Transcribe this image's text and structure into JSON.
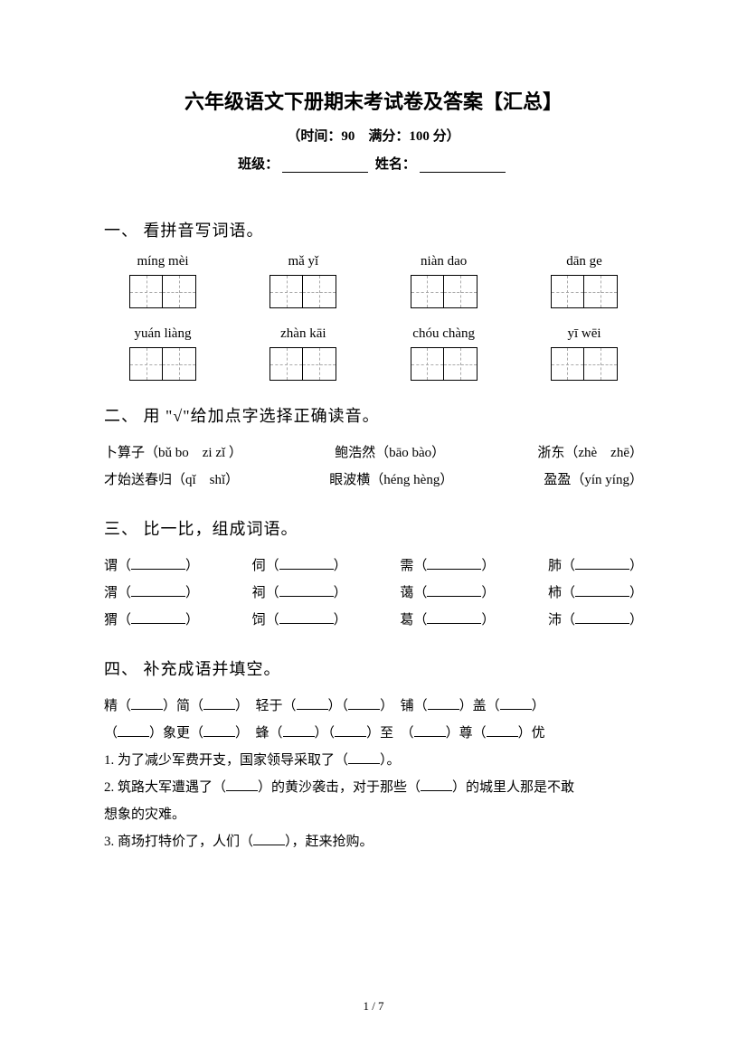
{
  "header": {
    "title": "六年级语文下册期末考试卷及答案【汇总】",
    "subtitle": "（时间：90　满分：100 分）",
    "class_label": "班级：",
    "name_label": "姓名："
  },
  "section1": {
    "heading": "一、 看拼音写词语。",
    "row1": [
      "míng mèi",
      "mǎ yǐ",
      "niàn dao",
      "dān ge"
    ],
    "row2": [
      "yuán liàng",
      "zhàn kāi",
      "chóu chàng",
      "yī wēi"
    ]
  },
  "section2": {
    "heading": "二、 用 \"√\"给加点字选择正确读音。",
    "line1_a": "卜算子（bǔ bo　zi zǐ ）",
    "line1_b": "鲍浩然（bāo bào）",
    "line1_c": "浙东（zhè　zhē）",
    "line2_a": "才始送春归（qǐ　shǐ）",
    "line2_b": "眼波横（héng hèng）",
    "line2_c": "盈盈（yín yíng）"
  },
  "section3": {
    "heading": "三、 比一比，组成词语。",
    "rows": [
      [
        "谓（",
        "伺（",
        "需（",
        "肺（"
      ],
      [
        "渭（",
        "祠（",
        "蔼（",
        "柿（"
      ],
      [
        "猬（",
        "饲（",
        "葛（",
        "沛（"
      ]
    ],
    "close": "）"
  },
  "section4": {
    "heading": "四、 补充成语并填空。",
    "l1a": "精（",
    "l1b": "）简（",
    "l1c": "）　轻于（",
    "l1d": "）（",
    "l1e": "）　铺（",
    "l1f": "）盖（",
    "l1g": "）",
    "l2a": "（",
    "l2b": "）象更（",
    "l2c": "）　蜂（",
    "l2d": "）（",
    "l2e": "）至　（",
    "l2f": "）尊（",
    "l2g": "）优",
    "q1a": "1. 为了减少军费开支，国家领导采取了（",
    "q1b": "）。",
    "q2a": "2. 筑路大军遭遇了（",
    "q2b": "）的黄沙袭击，对于那些（",
    "q2c": "）的城里人那是不敢",
    "q2d": "想象的灾难。",
    "q3a": "3. 商场打特价了，人们（",
    "q3b": "），赶来抢购。"
  },
  "footer": {
    "page": "1 / 7"
  }
}
